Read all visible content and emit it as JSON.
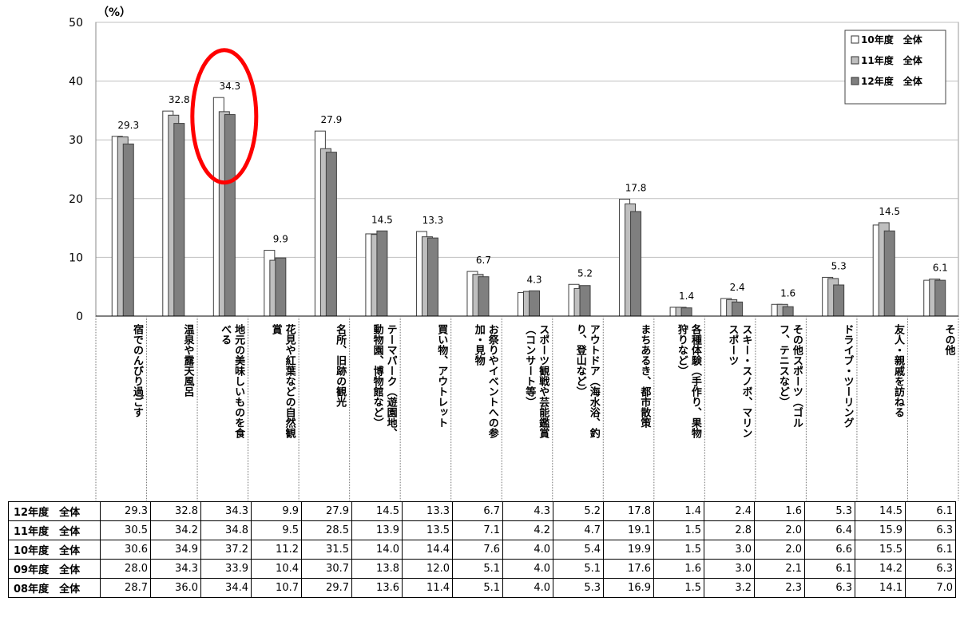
{
  "chart_data": {
    "type": "bar",
    "unit_label": "（%）",
    "ylim": [
      0,
      50
    ],
    "yticks": [
      0,
      10,
      20,
      30,
      40,
      50
    ],
    "categories": [
      "宿でのんびり過ごす",
      "温泉や露天風呂",
      "地元の美味しいものを食べる",
      "花見や紅葉などの自然観賞",
      "名所、旧跡の観光",
      "テーマパーク（遊園地、動物園、博物館など）",
      "買い物、アウトレット",
      "お祭りやイベントへの参加・見物",
      "スポーツ観戦や芸能鑑賞（コンサート等）",
      "アウトドア（海水浴、釣り、登山など）",
      "まちあるき、都市散策",
      "各種体験（手作り、果物狩りなど）",
      "スキー・スノボ、マリンスポーツ",
      "その他スポーツ（ゴルフ、テニスなど）",
      "ドライブ・ツーリング",
      "友人・親戚を訪ねる",
      "その他"
    ],
    "category_lines": [
      [
        "宿でのんびり過ごす"
      ],
      [
        "温泉や露天風呂"
      ],
      [
        "地元の美味しいものを食",
        "べる"
      ],
      [
        "花見や紅葉などの自然観",
        "賞"
      ],
      [
        "名所、旧跡の観光"
      ],
      [
        "テーマパーク（遊園地、",
        "動物園、博物館など）"
      ],
      [
        "買い物、アウトレット"
      ],
      [
        "お祭りやイベントへの参",
        "加・見物"
      ],
      [
        "スポーツ観戦や芸能鑑賞",
        "（コンサート等）"
      ],
      [
        "アウトドア（海水浴、釣",
        "り、登山など）"
      ],
      [
        "まちあるき、都市散策"
      ],
      [
        "各種体験（手作り、果物",
        "狩りなど）"
      ],
      [
        "スキー・スノボ、マリン",
        "スポーツ"
      ],
      [
        "その他スポーツ（ゴル",
        "フ、テニスなど）"
      ],
      [
        "ドライブ・ツーリング"
      ],
      [
        "友人・親戚を訪ねる"
      ],
      [
        "その他"
      ]
    ],
    "series": [
      {
        "name": "10年度　全体",
        "color": "#ffffff",
        "values": [
          30.6,
          34.9,
          37.2,
          11.2,
          31.5,
          14.0,
          14.4,
          7.6,
          4.0,
          5.4,
          19.9,
          1.5,
          3.0,
          2.0,
          6.6,
          15.5,
          6.1
        ]
      },
      {
        "name": "11年度　全体",
        "color": "#bfbfbf",
        "values": [
          30.5,
          34.2,
          34.8,
          9.5,
          28.5,
          13.9,
          13.5,
          7.1,
          4.2,
          4.7,
          19.1,
          1.5,
          2.8,
          2.0,
          6.4,
          15.9,
          6.3
        ]
      },
      {
        "name": "12年度　全体",
        "color": "#7f7f7f",
        "values": [
          29.3,
          32.8,
          34.3,
          9.9,
          27.9,
          14.5,
          13.3,
          6.7,
          4.3,
          5.2,
          17.8,
          1.4,
          2.4,
          1.6,
          5.3,
          14.5,
          6.1
        ]
      }
    ],
    "data_labels": [
      "29.3",
      "32.8",
      "34.3",
      "9.9",
      "27.9",
      "14.5",
      "13.3",
      "6.7",
      "4.3",
      "5.2",
      "17.8",
      "1.4",
      "2.4",
      "1.6",
      "5.3",
      "14.5",
      "6.1"
    ],
    "legend_position": "top-right",
    "highlight_category_index": 2,
    "highlight_color": "#ff0000",
    "table": {
      "rows": [
        {
          "label": "12年度　全体",
          "values": [
            "29.3",
            "32.8",
            "34.3",
            "9.9",
            "27.9",
            "14.5",
            "13.3",
            "6.7",
            "4.3",
            "5.2",
            "17.8",
            "1.4",
            "2.4",
            "1.6",
            "5.3",
            "14.5",
            "6.1"
          ]
        },
        {
          "label": "11年度　全体",
          "values": [
            "30.5",
            "34.2",
            "34.8",
            "9.5",
            "28.5",
            "13.9",
            "13.5",
            "7.1",
            "4.2",
            "4.7",
            "19.1",
            "1.5",
            "2.8",
            "2.0",
            "6.4",
            "15.9",
            "6.3"
          ]
        },
        {
          "label": "10年度　全体",
          "values": [
            "30.6",
            "34.9",
            "37.2",
            "11.2",
            "31.5",
            "14.0",
            "14.4",
            "7.6",
            "4.0",
            "5.4",
            "19.9",
            "1.5",
            "3.0",
            "2.0",
            "6.6",
            "15.5",
            "6.1"
          ]
        },
        {
          "label": "09年度　全体",
          "values": [
            "28.0",
            "34.3",
            "33.9",
            "10.4",
            "30.7",
            "13.8",
            "12.0",
            "5.1",
            "4.0",
            "5.1",
            "17.6",
            "1.6",
            "3.0",
            "2.1",
            "6.1",
            "14.2",
            "6.3"
          ]
        },
        {
          "label": "08年度　全体",
          "values": [
            "28.7",
            "36.0",
            "34.4",
            "10.7",
            "29.7",
            "13.6",
            "11.4",
            "5.1",
            "4.0",
            "5.3",
            "16.9",
            "1.5",
            "3.2",
            "2.3",
            "6.3",
            "14.1",
            "7.0"
          ]
        }
      ]
    }
  }
}
